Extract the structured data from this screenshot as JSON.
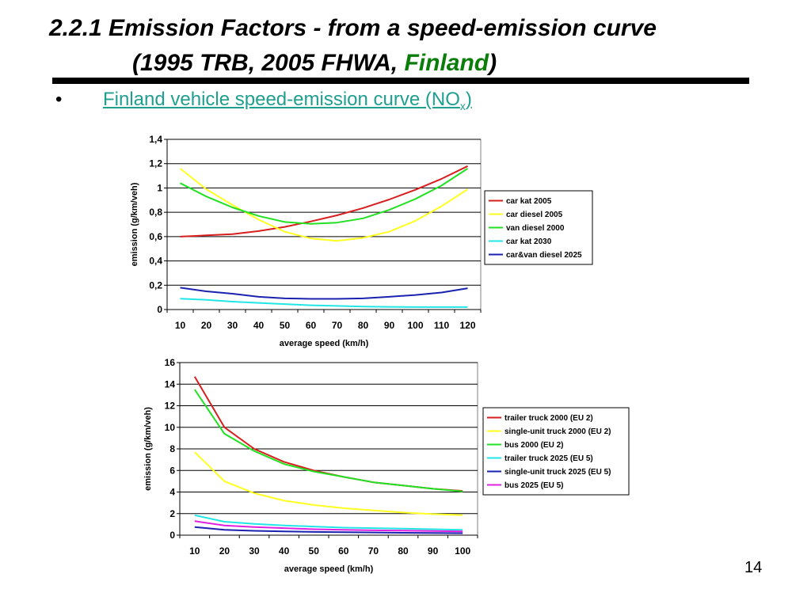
{
  "slide": {
    "title_line1": "2.2.1  Emission Factors - from a speed-emission curve",
    "title_line2_prefix": "(1995 TRB, 2005 FHWA, ",
    "title_line2_green": "Finland",
    "title_line2_suffix": ")",
    "bullet_char": "•",
    "bullet_text": "Finland vehicle speed-emission curve (NO",
    "bullet_sub": "x",
    "bullet_close": ")",
    "page_number": "14"
  },
  "chart_data": [
    {
      "type": "line",
      "x": [
        10,
        20,
        30,
        40,
        50,
        60,
        70,
        80,
        90,
        100,
        110,
        120
      ],
      "xticklabels": [
        "10",
        "20",
        "30",
        "40",
        "50",
        "60",
        "70",
        "80",
        "90",
        "100",
        "110",
        "120"
      ],
      "xlabel": "average speed (km/h)",
      "ylabel": "emission (g/km/veh)",
      "ylim": [
        0,
        1.4
      ],
      "yticks": [
        0,
        0.2,
        0.4,
        0.6,
        0.8,
        1,
        1.2,
        1.4
      ],
      "yticklabels": [
        "0",
        "0,2",
        "0,4",
        "0,6",
        "0,8",
        "1",
        "1,2",
        "1,4"
      ],
      "grid": true,
      "legend_position": "right",
      "series": [
        {
          "name": "car kat 2005",
          "color": "#d81e1e",
          "values": [
            0.6,
            0.61,
            0.62,
            0.645,
            0.68,
            0.725,
            0.775,
            0.835,
            0.905,
            0.985,
            1.075,
            1.18
          ]
        },
        {
          "name": "car diesel 2005",
          "color": "#ffff22",
          "values": [
            1.16,
            0.99,
            0.86,
            0.74,
            0.64,
            0.585,
            0.565,
            0.59,
            0.64,
            0.73,
            0.85,
            0.99
          ]
        },
        {
          "name": "van diesel 2000",
          "color": "#22e022",
          "values": [
            1.04,
            0.93,
            0.84,
            0.77,
            0.72,
            0.705,
            0.715,
            0.75,
            0.82,
            0.91,
            1.02,
            1.16
          ]
        },
        {
          "name": "car kat 2030",
          "color": "#22e6e6",
          "values": [
            0.09,
            0.08,
            0.065,
            0.055,
            0.045,
            0.035,
            0.03,
            0.025,
            0.022,
            0.02,
            0.02,
            0.02
          ]
        },
        {
          "name": "car&van diesel 2025",
          "color": "#1a22b0",
          "values": [
            0.18,
            0.15,
            0.13,
            0.105,
            0.092,
            0.088,
            0.088,
            0.092,
            0.105,
            0.12,
            0.14,
            0.175
          ]
        }
      ]
    },
    {
      "type": "line",
      "x": [
        10,
        20,
        30,
        40,
        50,
        60,
        70,
        80,
        90,
        100
      ],
      "xticklabels": [
        "10",
        "20",
        "30",
        "40",
        "50",
        "60",
        "70",
        "80",
        "90",
        "100"
      ],
      "xlabel": "average speed (km/h)",
      "ylabel": "emission (g/km/veh)",
      "ylim": [
        0,
        16
      ],
      "yticks": [
        0,
        2,
        4,
        6,
        8,
        10,
        12,
        14,
        16
      ],
      "yticklabels": [
        "0",
        "2",
        "4",
        "6",
        "8",
        "10",
        "12",
        "14",
        "16"
      ],
      "grid": true,
      "legend_position": "right",
      "series": [
        {
          "name": "trailer truck 2000 (EU 2)",
          "color": "#d81e1e",
          "values": [
            14.7,
            10.0,
            8.0,
            6.8,
            6.0,
            5.4,
            4.9,
            4.6,
            4.3,
            4.1
          ]
        },
        {
          "name": "single-unit truck 2000 (EU 2)",
          "color": "#ffff22",
          "values": [
            7.7,
            5.0,
            3.9,
            3.2,
            2.8,
            2.5,
            2.3,
            2.1,
            1.95,
            1.85
          ]
        },
        {
          "name": "bus 2000 (EU 2)",
          "color": "#22e022",
          "values": [
            13.5,
            9.4,
            7.8,
            6.6,
            5.9,
            5.4,
            4.9,
            4.6,
            4.3,
            4.05
          ]
        },
        {
          "name": "trailer truck 2025 (EU 5)",
          "color": "#22e6e6",
          "values": [
            1.85,
            1.25,
            1.05,
            0.9,
            0.8,
            0.7,
            0.65,
            0.6,
            0.55,
            0.5
          ]
        },
        {
          "name": "single-unit truck 2025 (EU 5)",
          "color": "#1a22b0",
          "values": [
            0.75,
            0.5,
            0.4,
            0.35,
            0.3,
            0.28,
            0.25,
            0.22,
            0.2,
            0.18
          ]
        },
        {
          "name": "bus 2025 (EU 5)",
          "color": "#e020e0",
          "values": [
            1.3,
            0.9,
            0.75,
            0.65,
            0.55,
            0.5,
            0.45,
            0.42,
            0.38,
            0.35
          ]
        }
      ]
    }
  ]
}
